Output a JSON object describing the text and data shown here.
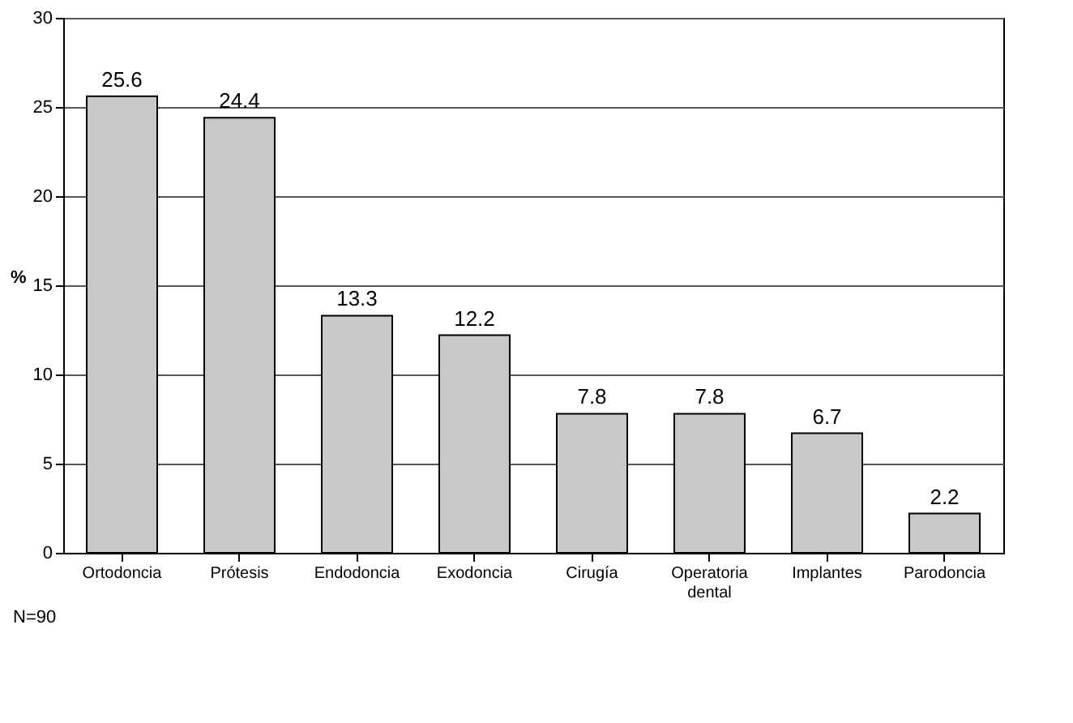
{
  "chart_data": {
    "type": "bar",
    "ylabel": "%",
    "categories": [
      "Ortodoncia",
      "Prótesis",
      "Endodoncia",
      "Exodoncia",
      "Cirugía",
      "Operatoria dental",
      "Implantes",
      "Parodoncia"
    ],
    "values": [
      25.6,
      24.4,
      13.3,
      12.2,
      7.8,
      7.8,
      6.7,
      2.2
    ],
    "color": "#c8c8c8",
    "ylim": [
      0,
      30
    ],
    "yticks": [
      0,
      5,
      10,
      15,
      20,
      25,
      30
    ],
    "grid": "y",
    "data_labels": true,
    "annotations": [
      "N=90"
    ]
  }
}
